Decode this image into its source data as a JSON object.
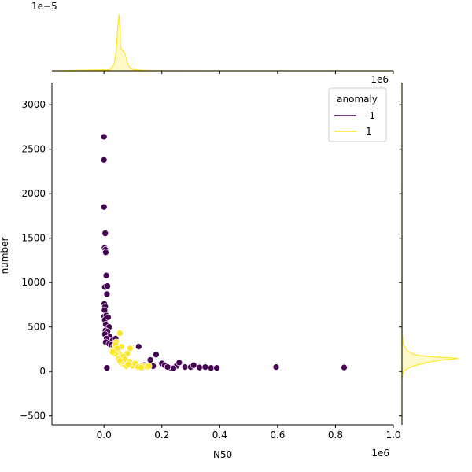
{
  "chart_data": {
    "type": "scatter",
    "title": "",
    "xlabel": "N50",
    "ylabel": "number",
    "x_scale_label": "1e6",
    "y_scale_label": "",
    "top_marginal_scale_label": "1e−5",
    "right_marginal_scale_label": "1e6",
    "xlim": [
      -180000,
      1000000
    ],
    "ylim": [
      -600,
      3250
    ],
    "x_ticks": [
      0,
      200000,
      400000,
      600000,
      800000,
      1000000
    ],
    "x_tick_labels": [
      "0.0",
      "0.2",
      "0.4",
      "0.6",
      "0.8",
      "1.0"
    ],
    "y_ticks": [
      -500,
      0,
      500,
      1000,
      1500,
      2000,
      2500,
      3000
    ],
    "y_tick_labels": [
      "−500",
      "0",
      "500",
      "1000",
      "1500",
      "2000",
      "2500",
      "3000"
    ],
    "grid": false,
    "legend": {
      "title": "anomaly",
      "placement": "top-right",
      "entries": [
        {
          "label": "-1",
          "color": "#440154"
        },
        {
          "label": "1",
          "color": "#fde725"
        }
      ]
    },
    "series": [
      {
        "name": "-1",
        "color": "#440154",
        "points": [
          [
            0,
            2640
          ],
          [
            0,
            2380
          ],
          [
            0,
            1850
          ],
          [
            4000,
            1555
          ],
          [
            2000,
            1390
          ],
          [
            5000,
            1370
          ],
          [
            6000,
            1340
          ],
          [
            8000,
            1080
          ],
          [
            3000,
            950
          ],
          [
            12000,
            960
          ],
          [
            10000,
            870
          ],
          [
            1000,
            760
          ],
          [
            4000,
            730
          ],
          [
            2000,
            690
          ],
          [
            1000,
            620
          ],
          [
            8000,
            630
          ],
          [
            3000,
            580
          ],
          [
            14000,
            610
          ],
          [
            6000,
            530
          ],
          [
            18000,
            500
          ],
          [
            5000,
            460
          ],
          [
            12000,
            450
          ],
          [
            3000,
            420
          ],
          [
            20000,
            390
          ],
          [
            9000,
            370
          ],
          [
            30000,
            350
          ],
          [
            6000,
            330
          ],
          [
            40000,
            370
          ],
          [
            18000,
            310
          ],
          [
            25000,
            300
          ],
          [
            34000,
            280
          ],
          [
            10000,
            40
          ],
          [
            120000,
            280
          ],
          [
            180000,
            190
          ],
          [
            160000,
            130
          ],
          [
            200000,
            90
          ],
          [
            140000,
            70
          ],
          [
            170000,
            60
          ],
          [
            210000,
            70
          ],
          [
            230000,
            40
          ],
          [
            250000,
            60
          ],
          [
            260000,
            100
          ],
          [
            280000,
            50
          ],
          [
            300000,
            50
          ],
          [
            310000,
            70
          ],
          [
            330000,
            45
          ],
          [
            350000,
            50
          ],
          [
            370000,
            40
          ],
          [
            390000,
            40
          ],
          [
            130000,
            40
          ],
          [
            220000,
            50
          ],
          [
            240000,
            35
          ],
          [
            595000,
            50
          ],
          [
            830000,
            45
          ]
        ]
      },
      {
        "name": "1",
        "color": "#fde725",
        "points": [
          [
            55000,
            430
          ],
          [
            42000,
            330
          ],
          [
            60000,
            280
          ],
          [
            35000,
            250
          ],
          [
            48000,
            230
          ],
          [
            52000,
            200
          ],
          [
            45000,
            180
          ],
          [
            58000,
            160
          ],
          [
            65000,
            150
          ],
          [
            70000,
            130
          ],
          [
            75000,
            120
          ],
          [
            80000,
            100
          ],
          [
            85000,
            95
          ],
          [
            90000,
            260
          ],
          [
            95000,
            90
          ],
          [
            100000,
            80
          ],
          [
            105000,
            75
          ],
          [
            110000,
            70
          ],
          [
            115000,
            65
          ],
          [
            120000,
            60
          ],
          [
            125000,
            55
          ],
          [
            130000,
            60
          ],
          [
            140000,
            55
          ],
          [
            150000,
            50
          ],
          [
            155000,
            60
          ],
          [
            60000,
            90
          ],
          [
            70000,
            80
          ],
          [
            80000,
            200
          ],
          [
            62000,
            110
          ],
          [
            40000,
            300
          ],
          [
            38000,
            200
          ],
          [
            50000,
            140
          ],
          [
            66000,
            170
          ],
          [
            72000,
            140
          ],
          [
            88000,
            110
          ],
          [
            92000,
            70
          ],
          [
            98000,
            65
          ],
          [
            108000,
            90
          ],
          [
            118000,
            50
          ],
          [
            128000,
            45
          ],
          [
            45000,
            260
          ],
          [
            30000,
            220
          ],
          [
            55000,
            120
          ],
          [
            78000,
            60
          ],
          [
            84000,
            80
          ]
        ]
      }
    ],
    "marginal_top": {
      "type": "area",
      "color": "#fde725",
      "x": [
        -180000,
        20000,
        35000,
        42000,
        48000,
        52000,
        55000,
        57000,
        60000,
        64000,
        68000,
        72000,
        76000,
        80000,
        85000,
        90000,
        100000,
        115000,
        135000,
        160000,
        200000,
        1000000
      ],
      "density": [
        0,
        0.02,
        0.12,
        0.35,
        0.8,
        1.0,
        0.75,
        0.45,
        0.38,
        0.36,
        0.34,
        0.3,
        0.24,
        0.16,
        0.09,
        0.05,
        0.025,
        0.015,
        0.008,
        0.004,
        0.001,
        0
      ]
    },
    "marginal_right": {
      "type": "area",
      "color": "#fde725",
      "y": [
        -600,
        -100,
        0,
        40,
        70,
        90,
        110,
        125,
        135,
        145,
        155,
        165,
        180,
        200,
        230,
        260,
        300,
        350,
        420,
        3250
      ],
      "density": [
        0,
        0,
        0.02,
        0.12,
        0.25,
        0.38,
        0.52,
        0.66,
        0.8,
        1.0,
        0.85,
        0.55,
        0.3,
        0.18,
        0.1,
        0.06,
        0.03,
        0.015,
        0.005,
        0
      ]
    }
  }
}
